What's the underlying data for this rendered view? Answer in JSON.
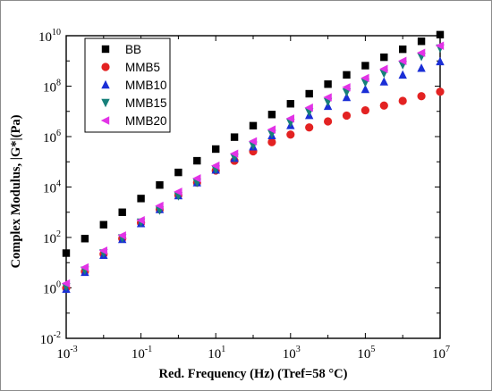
{
  "chart_data": {
    "type": "scatter",
    "title": "",
    "xlabel": "Red. Frequency (Hz) (Tref=58 °C)",
    "ylabel": "Complex Modulus, |G*|(Pa)",
    "x_scale": "log",
    "y_scale": "log",
    "xlim": [
      0.001,
      10000000
    ],
    "ylim": [
      0.01,
      10000000000
    ],
    "x_tick_labels": [
      {
        "value": 0.001,
        "base": "10",
        "exp": "-3"
      },
      {
        "value": 0.1,
        "base": "10",
        "exp": "-1"
      },
      {
        "value": 10,
        "base": "10",
        "exp": "1"
      },
      {
        "value": 1000,
        "base": "10",
        "exp": "3"
      },
      {
        "value": 100000,
        "base": "10",
        "exp": "5"
      },
      {
        "value": 10000000,
        "base": "10",
        "exp": "7"
      }
    ],
    "y_tick_labels": [
      {
        "value": 0.01,
        "base": "10",
        "exp": "-2"
      },
      {
        "value": 1,
        "base": "10",
        "exp": "0"
      },
      {
        "value": 100,
        "base": "10",
        "exp": "2"
      },
      {
        "value": 10000,
        "base": "10",
        "exp": "4"
      },
      {
        "value": 1000000,
        "base": "10",
        "exp": "6"
      },
      {
        "value": 100000000,
        "base": "10",
        "exp": "8"
      },
      {
        "value": 10000000000,
        "base": "10",
        "exp": "10"
      }
    ],
    "grid": false,
    "legend_position": "top-left",
    "series": [
      {
        "name": "BB",
        "marker": "square",
        "color": "#000000",
        "points": [
          [
            0.001,
            24
          ],
          [
            0.00316,
            90
          ],
          [
            0.01,
            320
          ],
          [
            0.0316,
            1000
          ],
          [
            0.1,
            3500
          ],
          [
            0.316,
            12000
          ],
          [
            1,
            38000
          ],
          [
            3.16,
            110000
          ],
          [
            10,
            320000
          ],
          [
            31.6,
            950000
          ],
          [
            100,
            2700000
          ],
          [
            316,
            7500000
          ],
          [
            1000,
            20000000
          ],
          [
            3160,
            50000000
          ],
          [
            10000,
            120000000
          ],
          [
            31600,
            280000000
          ],
          [
            100000,
            650000000
          ],
          [
            316000,
            1400000000
          ],
          [
            1000000,
            2900000000
          ],
          [
            3160000,
            6000000000
          ],
          [
            10000000,
            11000000000
          ]
        ]
      },
      {
        "name": "MMB5",
        "marker": "circle",
        "color": "#e32222",
        "points": [
          [
            0.001,
            1
          ],
          [
            0.00316,
            4.5
          ],
          [
            0.01,
            22
          ],
          [
            0.0316,
            90
          ],
          [
            0.1,
            380
          ],
          [
            0.316,
            1300
          ],
          [
            1,
            4800
          ],
          [
            3.16,
            15000
          ],
          [
            10,
            45000
          ],
          [
            31.6,
            110000
          ],
          [
            100,
            260000
          ],
          [
            316,
            600000
          ],
          [
            1000,
            1200000
          ],
          [
            3160,
            2300000
          ],
          [
            10000,
            4000000
          ],
          [
            31600,
            6800000
          ],
          [
            100000,
            11000000
          ],
          [
            316000,
            17000000
          ],
          [
            1000000,
            26000000
          ],
          [
            3160000,
            40000000
          ],
          [
            10000000,
            60000000
          ]
        ]
      },
      {
        "name": "MMB10",
        "marker": "triangle-up",
        "color": "#1a2ed6",
        "points": [
          [
            0.001,
            0.9
          ],
          [
            0.00316,
            4.2
          ],
          [
            0.01,
            20
          ],
          [
            0.0316,
            85
          ],
          [
            0.1,
            360
          ],
          [
            0.316,
            1300
          ],
          [
            1,
            4600
          ],
          [
            3.16,
            15000
          ],
          [
            10,
            48000
          ],
          [
            31.6,
            140000
          ],
          [
            100,
            400000
          ],
          [
            316,
            1100000
          ],
          [
            1000,
            2800000
          ],
          [
            3160,
            7000000
          ],
          [
            10000,
            16000000
          ],
          [
            31600,
            36000000
          ],
          [
            100000,
            75000000
          ],
          [
            316000,
            150000000
          ],
          [
            1000000,
            280000000
          ],
          [
            3160000,
            520000000
          ],
          [
            10000000,
            950000000
          ]
        ]
      },
      {
        "name": "MMB15",
        "marker": "triangle-down",
        "color": "#17807a",
        "points": [
          [
            0.001,
            1.1
          ],
          [
            0.00316,
            5
          ],
          [
            0.01,
            24
          ],
          [
            0.0316,
            95
          ],
          [
            0.1,
            400
          ],
          [
            0.316,
            1200
          ],
          [
            1,
            4400
          ],
          [
            3.16,
            15000
          ],
          [
            10,
            50000
          ],
          [
            31.6,
            150000
          ],
          [
            100,
            450000
          ],
          [
            316,
            1300000
          ],
          [
            1000,
            3600000
          ],
          [
            3160,
            9500000
          ],
          [
            10000,
            24000000
          ],
          [
            31600,
            58000000
          ],
          [
            100000,
            140000000
          ],
          [
            316000,
            320000000
          ],
          [
            1000000,
            700000000
          ],
          [
            3160000,
            1500000000
          ],
          [
            10000000,
            3200000000
          ]
        ]
      },
      {
        "name": "MMB20",
        "marker": "triangle-left",
        "color": "#e233e6",
        "points": [
          [
            0.001,
            1.5
          ],
          [
            0.00316,
            6.5
          ],
          [
            0.01,
            30
          ],
          [
            0.0316,
            120
          ],
          [
            0.1,
            480
          ],
          [
            0.316,
            1800
          ],
          [
            1,
            6500
          ],
          [
            3.16,
            22000
          ],
          [
            10,
            70000
          ],
          [
            31.6,
            210000
          ],
          [
            100,
            650000
          ],
          [
            316,
            1900000
          ],
          [
            1000,
            5200000
          ],
          [
            3160,
            14000000
          ],
          [
            10000,
            36000000
          ],
          [
            31600,
            90000000
          ],
          [
            100000,
            210000000
          ],
          [
            316000,
            480000000
          ],
          [
            1000000,
            1000000000
          ],
          [
            3160000,
            2100000000
          ],
          [
            10000000,
            4000000000
          ]
        ]
      }
    ]
  }
}
